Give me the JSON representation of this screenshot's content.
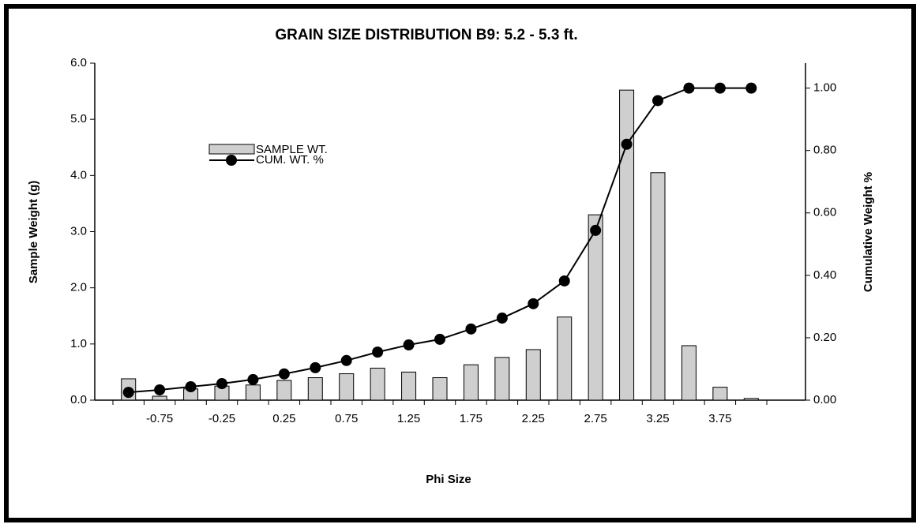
{
  "chart_data": {
    "type": "bar_line",
    "title": "GRAIN SIZE DISTRIBUTION B9:  5.2 - 5.3 ft.",
    "x_label": "Phi Size",
    "y_label": "Sample Weight (g)",
    "y2_label": "Cumulative Weight %",
    "categories": [
      null,
      "-0.75",
      null,
      "-0.25",
      null,
      "0.25",
      null,
      "0.75",
      null,
      "1.25",
      null,
      "1.75",
      null,
      "2.25",
      null,
      "2.75",
      null,
      "3.25",
      null,
      "3.75",
      null
    ],
    "series": [
      {
        "name": "SAMPLE WT.",
        "type": "bar",
        "color": "#cfcfcf",
        "values": [
          0.38,
          0.07,
          0.2,
          0.25,
          0.27,
          0.35,
          0.4,
          0.47,
          0.57,
          0.5,
          0.4,
          0.63,
          0.76,
          0.9,
          1.48,
          3.3,
          5.52,
          4.05,
          0.97,
          0.23,
          0.03
        ]
      },
      {
        "name": "CUM. WT. %",
        "type": "line",
        "axis": "y2",
        "color": "#000000",
        "values": [
          0.025,
          0.033,
          0.043,
          0.053,
          0.066,
          0.084,
          0.104,
          0.127,
          0.154,
          0.177,
          0.195,
          0.228,
          0.263,
          0.309,
          0.382,
          0.544,
          0.82,
          0.96,
          1.0,
          1.0,
          1.0
        ]
      }
    ],
    "ylim": [
      0,
      6
    ],
    "yticks": [
      {
        "value": 0,
        "label": "0.0"
      },
      {
        "value": 1,
        "label": "1.0"
      },
      {
        "value": 2,
        "label": "2.0"
      },
      {
        "value": 3,
        "label": "3.0"
      },
      {
        "value": 4,
        "label": "4.0"
      },
      {
        "value": 5,
        "label": "5.0"
      },
      {
        "value": 6,
        "label": "6.0"
      }
    ],
    "y2lim": [
      0,
      1.08
    ],
    "y2ticks": [
      {
        "value": 0,
        "label": "0.00"
      },
      {
        "value": 0.2,
        "label": "0.20"
      },
      {
        "value": 0.4,
        "label": "0.40"
      },
      {
        "value": 0.6,
        "label": "0.60"
      },
      {
        "value": 0.8,
        "label": "0.80"
      },
      {
        "value": 1,
        "label": "1.00"
      }
    ]
  }
}
